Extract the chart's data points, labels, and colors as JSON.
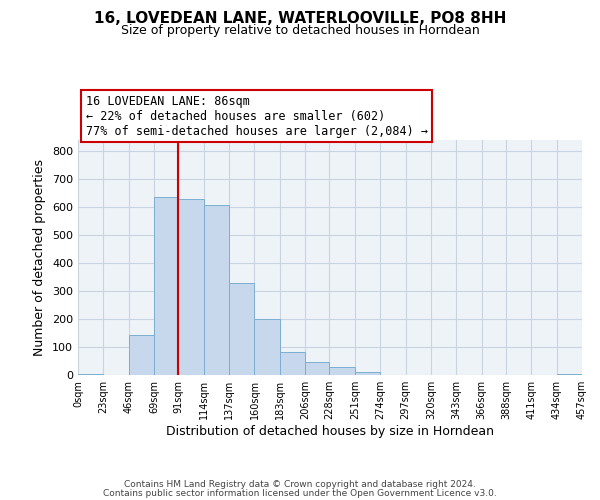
{
  "title": "16, LOVEDEAN LANE, WATERLOOVILLE, PO8 8HH",
  "subtitle": "Size of property relative to detached houses in Horndean",
  "xlabel": "Distribution of detached houses by size in Horndean",
  "ylabel": "Number of detached properties",
  "bar_edges": [
    0,
    23,
    46,
    69,
    91,
    114,
    137,
    160,
    183,
    206,
    228,
    251,
    274,
    297,
    320,
    343,
    366,
    388,
    411,
    434,
    457
  ],
  "bar_heights": [
    3,
    0,
    143,
    635,
    630,
    608,
    330,
    200,
    83,
    47,
    27,
    12,
    0,
    0,
    0,
    0,
    0,
    0,
    0,
    3
  ],
  "bar_color": "#c8d8ec",
  "bar_edgecolor": "#7aaed0",
  "property_line_x": 91,
  "property_line_color": "#cc0000",
  "annotation_title": "16 LOVEDEAN LANE: 86sqm",
  "annotation_line1": "← 22% of detached houses are smaller (602)",
  "annotation_line2": "77% of semi-detached houses are larger (2,084) →",
  "annotation_box_color": "#cc0000",
  "ylim": [
    0,
    840
  ],
  "yticks": [
    0,
    100,
    200,
    300,
    400,
    500,
    600,
    700,
    800
  ],
  "tick_labels": [
    "0sqm",
    "23sqm",
    "46sqm",
    "69sqm",
    "91sqm",
    "114sqm",
    "137sqm",
    "160sqm",
    "183sqm",
    "206sqm",
    "228sqm",
    "251sqm",
    "274sqm",
    "297sqm",
    "320sqm",
    "343sqm",
    "366sqm",
    "388sqm",
    "411sqm",
    "434sqm",
    "457sqm"
  ],
  "footer1": "Contains HM Land Registry data © Crown copyright and database right 2024.",
  "footer2": "Contains public sector information licensed under the Open Government Licence v3.0.",
  "background_color": "#ffffff",
  "plot_bg_color": "#eef3f8",
  "grid_color": "#c8d4e0"
}
